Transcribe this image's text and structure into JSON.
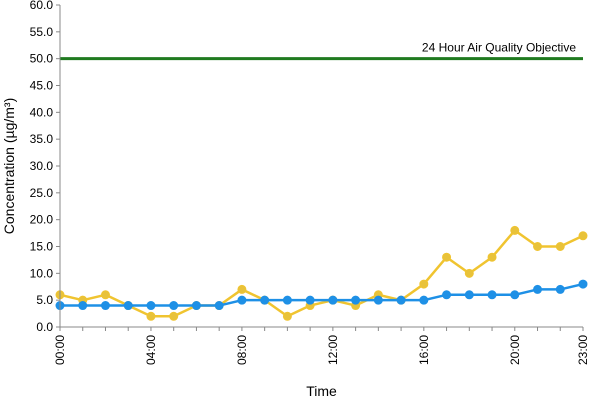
{
  "chart_data": {
    "type": "line",
    "xlabel": "Time",
    "ylabel": "Concentration (µg/m³)",
    "ylim": [
      0,
      60
    ],
    "y_ticks": [
      "0.0",
      "5.0",
      "10.0",
      "15.0",
      "20.0",
      "25.0",
      "30.0",
      "35.0",
      "40.0",
      "45.0",
      "50.0",
      "55.0",
      "60.0"
    ],
    "x_tick_labels": [
      "00:00",
      "04:00",
      "08:00",
      "12:00",
      "16:00",
      "20:00",
      "23:00"
    ],
    "x_tick_hours": [
      0,
      4,
      8,
      12,
      16,
      20,
      23
    ],
    "grid": false,
    "x": [
      0,
      1,
      2,
      3,
      4,
      5,
      6,
      7,
      8,
      9,
      10,
      11,
      12,
      13,
      14,
      15,
      16,
      17,
      18,
      19,
      20,
      21,
      22,
      23
    ],
    "series": [
      {
        "color": "#f0c430",
        "marker_color": "#e8c23a",
        "values": [
          6,
          5,
          6,
          4,
          2,
          2,
          4,
          4,
          7,
          5,
          2,
          4,
          5,
          4,
          6,
          5,
          8,
          13,
          10,
          13,
          18,
          15,
          15,
          17
        ]
      },
      {
        "color": "#1e90e6",
        "marker_color": "#1e90e6",
        "values": [
          4,
          4,
          4,
          4,
          4,
          4,
          4,
          4,
          5,
          5,
          5,
          5,
          5,
          5,
          5,
          5,
          5,
          6,
          6,
          6,
          6,
          7,
          7,
          8
        ]
      }
    ],
    "objective": {
      "value": 50,
      "label": "24 Hour Air Quality Objective",
      "color": "#1f7a1f"
    }
  }
}
